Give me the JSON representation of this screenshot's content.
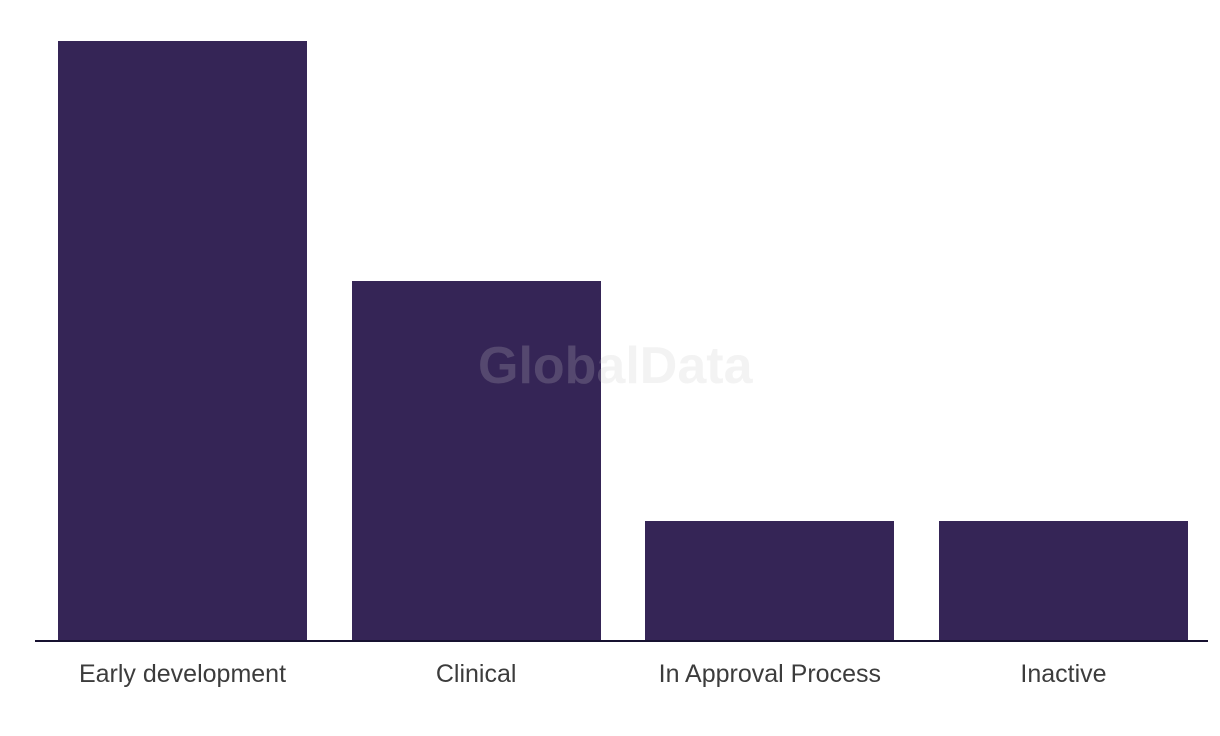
{
  "chart_data": {
    "type": "bar",
    "categories": [
      "Early development",
      "Clinical",
      "In Approval Process",
      "Inactive"
    ],
    "values": [
      5,
      3,
      1,
      1
    ],
    "title": "",
    "xlabel": "",
    "ylabel": "",
    "ylim": [
      0,
      5
    ],
    "value_axis_visible": false,
    "grid": false,
    "legend": false,
    "bar_color": "#352556",
    "axis_color": "#171130",
    "label_color": "#3c3c3c"
  },
  "watermark": {
    "text": "GlobalData",
    "color": "rgba(200,200,200,0.22)"
  }
}
